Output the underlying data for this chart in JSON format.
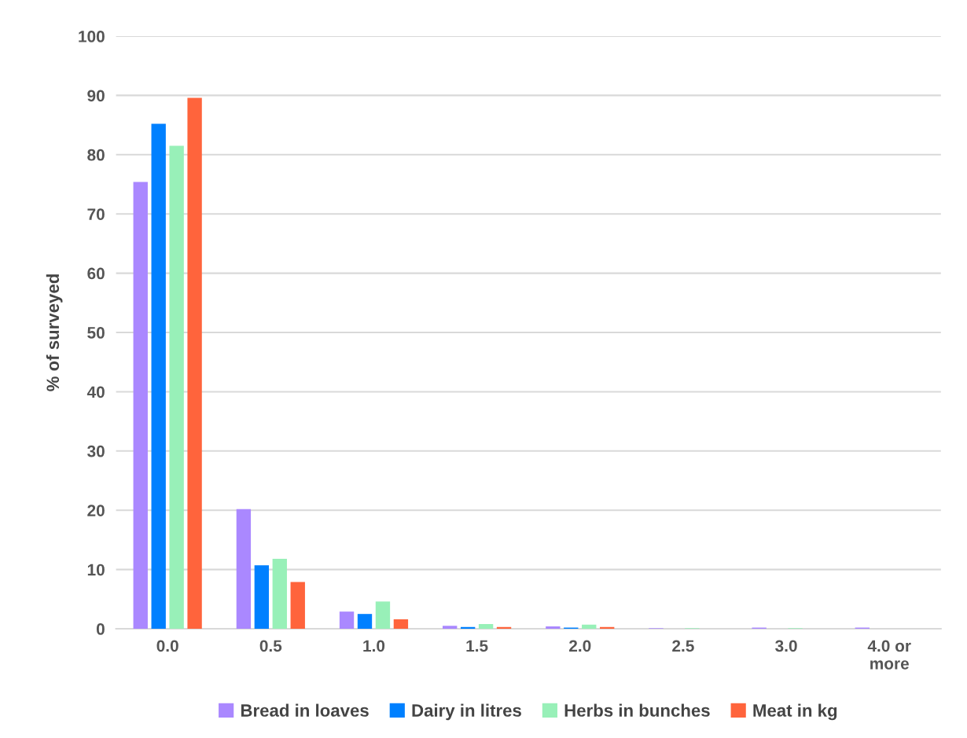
{
  "chart_data": {
    "type": "bar",
    "ylabel": "% of surveyed",
    "categories": [
      "0.0",
      "0.5",
      "1.0",
      "1.5",
      "2.0",
      "2.5",
      "3.0",
      "4.0 or\nmore"
    ],
    "series": [
      {
        "name": "Bread in loaves",
        "color": "#aa88ff",
        "values": [
          75.4,
          20.2,
          2.9,
          0.5,
          0.4,
          0.1,
          0.2,
          0.2
        ]
      },
      {
        "name": "Dairy in litres",
        "color": "#0080ff",
        "values": [
          85.2,
          10.7,
          2.5,
          0.3,
          0.2,
          0.0,
          0.0,
          0.0
        ]
      },
      {
        "name": "Herbs in bunches",
        "color": "#98f0b8",
        "values": [
          81.5,
          11.8,
          4.6,
          0.8,
          0.7,
          0.1,
          0.1,
          0.0
        ]
      },
      {
        "name": "Meat in kg",
        "color": "#ff643c",
        "values": [
          89.6,
          7.9,
          1.6,
          0.3,
          0.3,
          0.0,
          0.0,
          0.0
        ]
      }
    ],
    "ylim": [
      0,
      100
    ],
    "yticks": [
      0,
      10,
      20,
      30,
      40,
      50,
      60,
      70,
      80,
      90,
      100
    ],
    "grid": "y",
    "legend": "bottom"
  }
}
